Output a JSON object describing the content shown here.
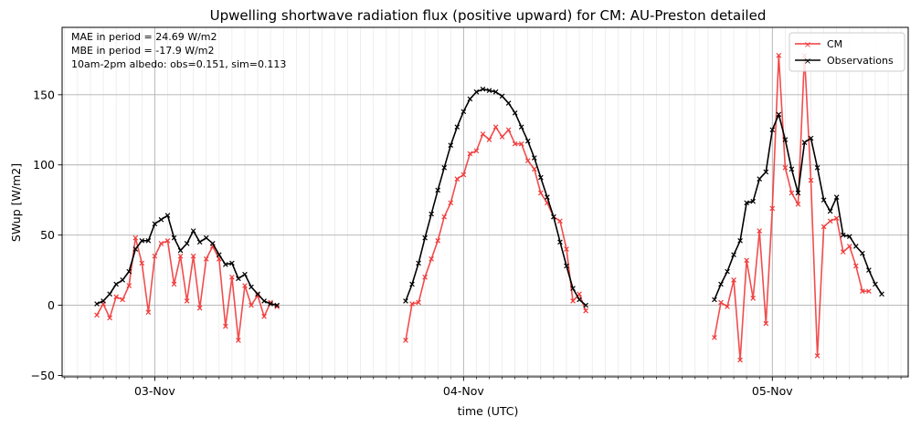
{
  "chart_data": {
    "type": "line",
    "title": "Upwelling shortwave radiation flux (positive upward) for CM: AU-Preston detailed",
    "xlabel": "time (UTC)",
    "ylabel": "SWup [W/m2]",
    "xlim": [
      2.7,
      5.44
    ],
    "ylim": [
      -51,
      198
    ],
    "yticks": [
      -50,
      0,
      50,
      100,
      150
    ],
    "xticks": [
      {
        "value": 3,
        "label": "03-Nov"
      },
      {
        "value": 4,
        "label": "04-Nov"
      },
      {
        "value": 5,
        "label": "05-Nov"
      }
    ],
    "grid": true,
    "legend_position": "top-right",
    "annotations": [
      "MAE in period = 24.69 W/m2",
      "MBE in period = -17.9 W/m2",
      "10am-2pm albedo: obs=0.151, sim=0.113"
    ],
    "series": [
      {
        "name": "CM",
        "color": "#f03a3a",
        "x": [
          2.8125,
          2.8333,
          2.8542,
          2.875,
          2.8958,
          2.9167,
          2.9375,
          2.9583,
          2.9792,
          3.0,
          3.0208,
          3.0417,
          3.0625,
          3.0833,
          3.1042,
          3.125,
          3.1458,
          3.1667,
          3.1875,
          3.2083,
          3.2292,
          3.25,
          3.2708,
          3.2917,
          3.3125,
          3.3333,
          3.3542,
          3.375,
          3.3958,
          3.4167,
          3.8125,
          3.8333,
          3.8542,
          3.875,
          3.8958,
          3.9167,
          3.9375,
          3.9583,
          3.9792,
          4.0,
          4.0208,
          4.0417,
          4.0625,
          4.0833,
          4.1042,
          4.125,
          4.1458,
          4.1667,
          4.1875,
          4.2083,
          4.2292,
          4.25,
          4.2708,
          4.2917,
          4.3125,
          4.3333,
          4.3542,
          4.375,
          4.3958,
          4.4167,
          4.8125,
          4.8333,
          4.8542,
          4.875,
          4.8958,
          4.9167,
          4.9375,
          4.9583,
          4.9792,
          5.0,
          5.0208,
          5.0417,
          5.0625,
          5.0833,
          5.1042,
          5.125,
          5.1458,
          5.1667,
          5.1875,
          5.2083,
          5.2292,
          5.25,
          5.2708,
          5.2917,
          5.3125,
          5.3333,
          5.3542,
          5.375,
          5.3958,
          5.4167
        ],
        "y": [
          -7,
          1,
          -9,
          6,
          4,
          14,
          48,
          30,
          -5,
          35,
          44,
          46,
          15,
          35,
          3,
          35,
          -2,
          33,
          42,
          33,
          -15,
          20,
          -25,
          14,
          0,
          7,
          -8,
          2,
          -1,
          null,
          -25,
          1,
          2,
          20,
          33,
          46,
          63,
          73,
          90,
          93,
          108,
          110,
          122,
          118,
          127,
          120,
          125,
          115,
          115,
          103,
          97,
          80,
          73,
          63,
          60,
          40,
          3,
          8,
          -4,
          null,
          -23,
          2,
          -1,
          18,
          -39,
          32,
          5,
          53,
          -13,
          69,
          178,
          98,
          80,
          72,
          178,
          89,
          -36,
          56,
          60,
          62,
          38,
          42,
          28,
          10,
          10,
          null,
          null,
          null,
          null,
          null
        ]
      },
      {
        "name": "Observations",
        "color": "#000000",
        "x": [
          2.8125,
          2.8333,
          2.8542,
          2.875,
          2.8958,
          2.9167,
          2.9375,
          2.9583,
          2.9792,
          3.0,
          3.0208,
          3.0417,
          3.0625,
          3.0833,
          3.1042,
          3.125,
          3.1458,
          3.1667,
          3.1875,
          3.2083,
          3.2292,
          3.25,
          3.2708,
          3.2917,
          3.3125,
          3.3333,
          3.3542,
          3.375,
          3.3958,
          3.4167,
          3.8125,
          3.8333,
          3.8542,
          3.875,
          3.8958,
          3.9167,
          3.9375,
          3.9583,
          3.9792,
          4.0,
          4.0208,
          4.0417,
          4.0625,
          4.0833,
          4.1042,
          4.125,
          4.1458,
          4.1667,
          4.1875,
          4.2083,
          4.2292,
          4.25,
          4.2708,
          4.2917,
          4.3125,
          4.3333,
          4.3542,
          4.375,
          4.3958,
          4.4167,
          4.8125,
          4.8333,
          4.8542,
          4.875,
          4.8958,
          4.9167,
          4.9375,
          4.9583,
          4.9792,
          5.0,
          5.0208,
          5.0417,
          5.0625,
          5.0833,
          5.1042,
          5.125,
          5.1458,
          5.1667,
          5.1875,
          5.2083,
          5.2292,
          5.25,
          5.2708,
          5.2917,
          5.3125,
          5.3333,
          5.3542,
          5.375,
          5.3958,
          5.4167
        ],
        "y": [
          1,
          3,
          8,
          15,
          18,
          24,
          40,
          46,
          46,
          58,
          61,
          64,
          48,
          39,
          44,
          53,
          45,
          48,
          44,
          36,
          29,
          30,
          19,
          22,
          13,
          8,
          3,
          1,
          0,
          null,
          3,
          15,
          30,
          48,
          65,
          82,
          98,
          114,
          127,
          138,
          147,
          152,
          154,
          153,
          152,
          149,
          144,
          137,
          127,
          117,
          105,
          91,
          77,
          63,
          45,
          28,
          12,
          4,
          0,
          null,
          4,
          15,
          24,
          36,
          46,
          73,
          74,
          90,
          95,
          125,
          136,
          118,
          97,
          80,
          116,
          119,
          98,
          75,
          67,
          77,
          50,
          49,
          42,
          37,
          25,
          15,
          8,
          null,
          null,
          null
        ]
      }
    ]
  }
}
